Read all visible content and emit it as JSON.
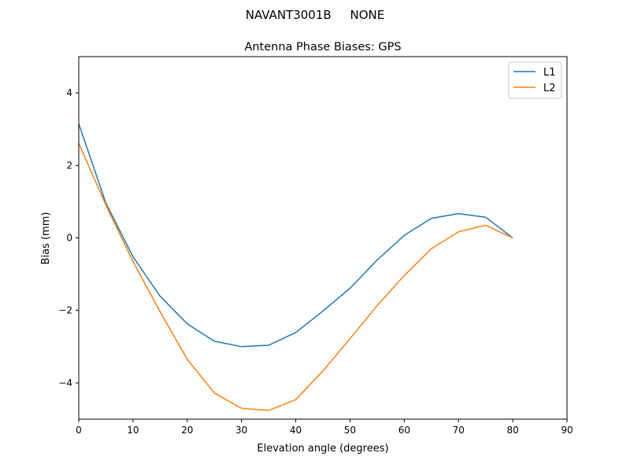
{
  "chart_data": {
    "type": "line",
    "suptitle": "NAVANT3001B     NONE",
    "title": "Antenna Phase Biases: GPS",
    "xlabel": "Elevation angle (degrees)",
    "ylabel": "Bias (mm)",
    "xlim": [
      0,
      90
    ],
    "ylim": [
      -5,
      5
    ],
    "xticks": [
      0,
      10,
      20,
      30,
      40,
      50,
      60,
      70,
      80,
      90
    ],
    "yticks": [
      -4,
      -2,
      0,
      2,
      4
    ],
    "ytick_labels": [
      "−4",
      "−2",
      "0",
      "2",
      "4"
    ],
    "grid": false,
    "legend_position": "upper-right",
    "x": [
      0,
      5,
      10,
      15,
      20,
      25,
      30,
      35,
      40,
      45,
      50,
      55,
      60,
      65,
      70,
      75,
      80
    ],
    "series": [
      {
        "name": "L1",
        "color": "#1f77b4",
        "values": [
          3.15,
          0.96,
          -0.52,
          -1.61,
          -2.37,
          -2.85,
          -3.0,
          -2.96,
          -2.61,
          -2.02,
          -1.39,
          -0.61,
          0.07,
          0.54,
          0.67,
          0.57,
          0.0
        ]
      },
      {
        "name": "L2",
        "color": "#ff7f0e",
        "values": [
          2.61,
          0.91,
          -0.65,
          -2.04,
          -3.35,
          -4.28,
          -4.7,
          -4.76,
          -4.46,
          -3.67,
          -2.78,
          -1.87,
          -1.04,
          -0.3,
          0.17,
          0.35,
          0.0
        ]
      }
    ]
  }
}
